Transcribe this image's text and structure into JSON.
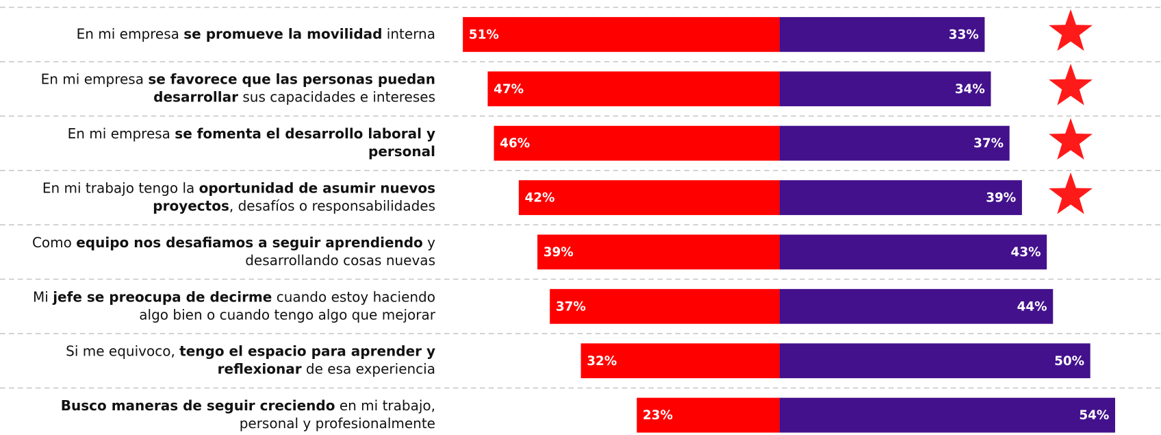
{
  "chart_data": {
    "type": "diverging-bar",
    "categories": [
      [
        [
          {
            "text": "En mi empresa ",
            "bold": false
          },
          {
            "text": "se promueve la movilidad",
            "bold": true
          },
          {
            "text": " interna",
            "bold": false
          }
        ]
      ],
      [
        [
          {
            "text": "En mi empresa ",
            "bold": false
          },
          {
            "text": "se favorece que las personas puedan",
            "bold": true
          }
        ],
        [
          {
            "text": "desarrollar",
            "bold": true
          },
          {
            "text": " sus capacidades e intereses",
            "bold": false
          }
        ]
      ],
      [
        [
          {
            "text": "En mi empresa ",
            "bold": false
          },
          {
            "text": "se fomenta el desarrollo laboral y",
            "bold": true
          }
        ],
        [
          {
            "text": "personal",
            "bold": true
          }
        ]
      ],
      [
        [
          {
            "text": "En mi trabajo tengo la ",
            "bold": false
          },
          {
            "text": "oportunidad de asumir nuevos",
            "bold": true
          }
        ],
        [
          {
            "text": "proyectos",
            "bold": true
          },
          {
            "text": ", desafíos o responsabilidades",
            "bold": false
          }
        ]
      ],
      [
        [
          {
            "text": "Como ",
            "bold": false
          },
          {
            "text": "equipo nos desafiamos a seguir aprendiendo",
            "bold": true
          },
          {
            "text": " y",
            "bold": false
          }
        ],
        [
          {
            "text": "desarrollando cosas nuevas",
            "bold": false
          }
        ]
      ],
      [
        [
          {
            "text": "Mi ",
            "bold": false
          },
          {
            "text": "jefe se preocupa de decirme",
            "bold": true
          },
          {
            "text": " cuando estoy haciendo",
            "bold": false
          }
        ],
        [
          {
            "text": "algo bien o cuando tengo algo que mejorar",
            "bold": false
          }
        ]
      ],
      [
        [
          {
            "text": "Si me equivoco, ",
            "bold": false
          },
          {
            "text": "tengo el espacio para aprender y",
            "bold": true
          }
        ],
        [
          {
            "text": "reflexionar",
            "bold": true
          },
          {
            "text": " de esa experiencia",
            "bold": false
          }
        ]
      ],
      [
        [
          {
            "text": "Busco maneras de seguir creciendo",
            "bold": true
          },
          {
            "text": " en mi trabajo,",
            "bold": false
          }
        ],
        [
          {
            "text": "personal y profesionalmente",
            "bold": false
          }
        ]
      ]
    ],
    "series": [
      {
        "color": "#ff0000",
        "direction": "left",
        "values": [
          51,
          47,
          46,
          42,
          39,
          37,
          32,
          23
        ],
        "value_labels": [
          "51%",
          "47%",
          "46%",
          "42%",
          "39%",
          "37%",
          "32%",
          "23%"
        ]
      },
      {
        "color": "#43118c",
        "direction": "right",
        "values": [
          33,
          34,
          37,
          39,
          43,
          44,
          50,
          54
        ],
        "value_labels": [
          "33%",
          "34%",
          "37%",
          "39%",
          "43%",
          "44%",
          "50%",
          "54%"
        ]
      }
    ],
    "stars": [
      true,
      true,
      true,
      true,
      false,
      false,
      false,
      false
    ],
    "star_color": "#ff1a1a"
  }
}
